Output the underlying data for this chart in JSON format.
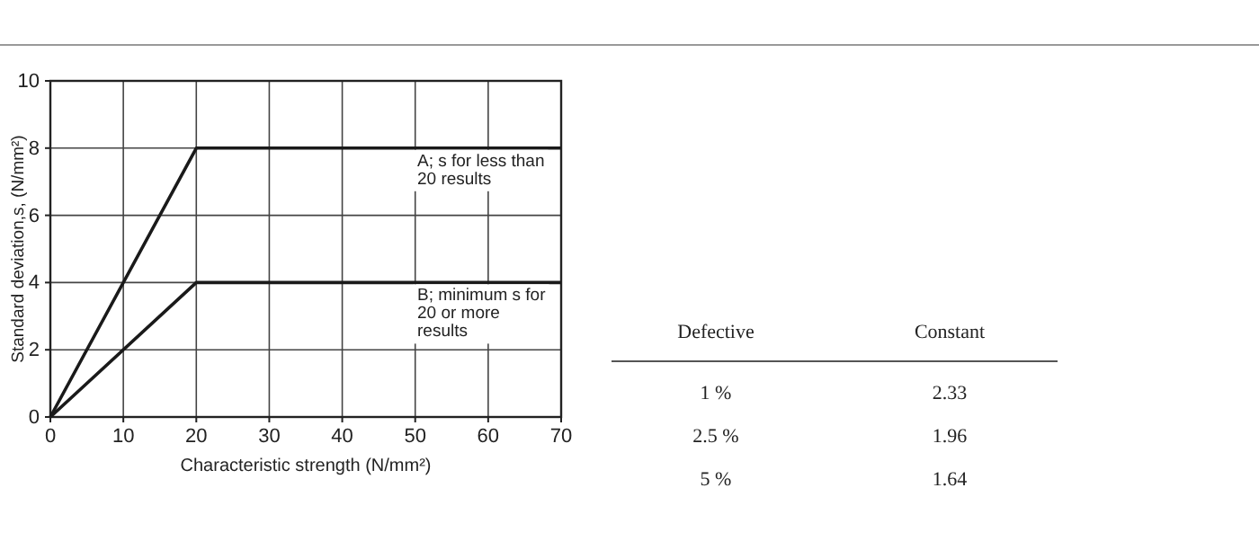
{
  "chart_data": [
    {
      "type": "line",
      "xlabel": "Characteristic strength (N/mm²)",
      "ylabel": "Standard deviation,s, (N/mm²)",
      "xlim": [
        0,
        70
      ],
      "ylim": [
        0,
        10
      ],
      "xticks": [
        0,
        10,
        20,
        30,
        40,
        50,
        60,
        70
      ],
      "yticks": [
        0,
        2,
        4,
        6,
        8,
        10
      ],
      "grid": true,
      "legend": false,
      "marker": "none",
      "line_style": "solid",
      "series": [
        {
          "name": "A; s for less than 20 results",
          "color": "#1a1a1a",
          "x": [
            0,
            20,
            70
          ],
          "values": [
            0,
            8,
            8
          ]
        },
        {
          "name": "B; minimum s for 20 or more results",
          "color": "#1a1a1a",
          "x": [
            0,
            20,
            70
          ],
          "values": [
            0,
            4,
            4
          ]
        }
      ]
    },
    {
      "type": "other",
      "annotations": [
        "Defective",
        "Constant",
        "1 %",
        "2.33",
        "2.5 %",
        "1.96",
        "5 %",
        "1.64"
      ]
    }
  ]
}
